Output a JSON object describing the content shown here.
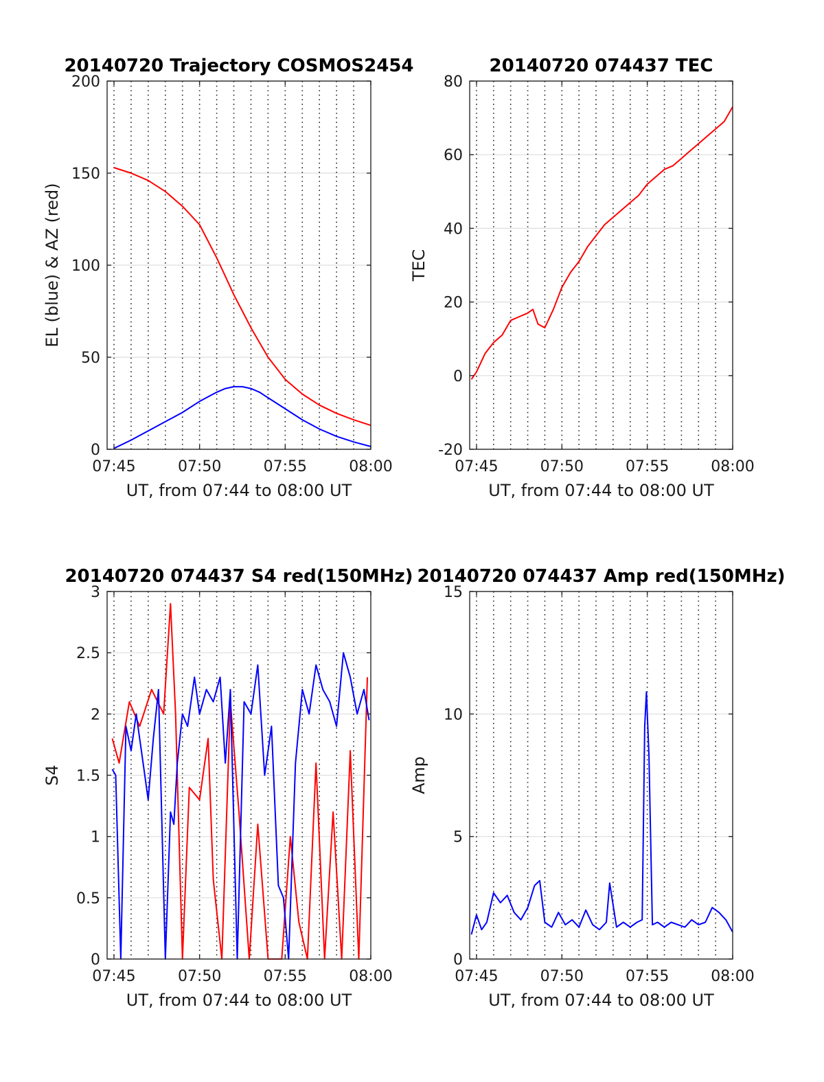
{
  "chart_data": [
    {
      "type": "line",
      "title": "20140720 Trajectory COSMOS2454",
      "xlabel": "UT, from 07:44 to 08:00 UT",
      "ylabel": "EL (blue) & AZ (red)",
      "x_unit": "minutes after 07:00 UT",
      "xlim": [
        44.6,
        60
      ],
      "ylim": [
        0,
        200
      ],
      "xticks": [
        45,
        50,
        55,
        60
      ],
      "xtick_labels": [
        "07:45",
        "07:50",
        "07:55",
        "08:00"
      ],
      "yticks": [
        0,
        50,
        100,
        150,
        200
      ],
      "ytick_labels": [
        "0",
        "50",
        "100",
        "150",
        "200"
      ],
      "vgrid_minutes": [
        45,
        46,
        47,
        48,
        49,
        50,
        51,
        52,
        53,
        54,
        55,
        56,
        57,
        58,
        59
      ],
      "hgrid": true,
      "series": [
        {
          "color": "#ff0000",
          "x": [
            45,
            46,
            47,
            48,
            49,
            50,
            51,
            51.5,
            52,
            52.5,
            53,
            53.5,
            54,
            55,
            56,
            57,
            58,
            59,
            60
          ],
          "y": [
            153,
            150,
            146,
            140,
            132,
            122,
            104,
            94,
            84,
            75,
            66,
            58,
            50,
            38,
            30,
            24,
            19.5,
            16,
            13
          ]
        },
        {
          "color": "#0000ff",
          "x": [
            45,
            46,
            47,
            48,
            49,
            50,
            51,
            51.5,
            52,
            52.5,
            53,
            53.5,
            54,
            55,
            56,
            57,
            58,
            59,
            60
          ],
          "y": [
            0.5,
            5,
            10,
            15,
            20,
            26,
            31,
            33,
            34,
            34,
            33,
            31,
            28,
            22,
            16,
            11,
            7,
            4,
            1.5
          ]
        }
      ]
    },
    {
      "type": "line",
      "title": "20140720 074437 TEC",
      "xlabel": "UT, from 07:44 to 08:00 UT",
      "ylabel": "TEC",
      "x_unit": "minutes after 07:00 UT",
      "xlim": [
        44.6,
        60
      ],
      "ylim": [
        -20,
        80
      ],
      "xticks": [
        45,
        50,
        55,
        60
      ],
      "xtick_labels": [
        "07:45",
        "07:50",
        "07:55",
        "08:00"
      ],
      "yticks": [
        -20,
        0,
        20,
        40,
        60,
        80
      ],
      "ytick_labels": [
        "-20",
        "0",
        "20",
        "40",
        "60",
        "80"
      ],
      "vgrid_minutes": [
        45,
        46,
        47,
        48,
        49,
        50,
        51,
        52,
        53,
        54,
        55,
        56,
        57,
        58,
        59
      ],
      "hgrid": true,
      "series": [
        {
          "color": "#ff0000",
          "x": [
            44.7,
            45,
            45.5,
            46,
            46.5,
            47,
            47.5,
            48,
            48.3,
            48.6,
            49,
            49.5,
            50,
            50.5,
            51,
            51.5,
            52,
            52.5,
            53,
            53.5,
            54,
            54.5,
            55,
            55.5,
            56,
            56.5,
            57,
            57.5,
            58,
            58.5,
            59,
            59.5,
            60
          ],
          "y": [
            -1,
            1,
            6,
            9,
            11,
            15,
            16,
            17,
            18,
            14,
            13,
            18,
            24,
            28,
            31,
            35,
            38,
            41,
            43,
            45,
            47,
            49,
            52,
            54,
            56,
            57,
            59,
            61,
            63,
            65,
            67,
            69,
            73
          ]
        }
      ]
    },
    {
      "type": "line",
      "title": "20140720 074437 S4 red(150MHz)",
      "xlabel": "UT, from 07:44 to 08:00 UT",
      "ylabel": "S4",
      "x_unit": "minutes after 07:00 UT",
      "xlim": [
        44.6,
        60
      ],
      "ylim": [
        0,
        3
      ],
      "xticks": [
        45,
        50,
        55,
        60
      ],
      "xtick_labels": [
        "07:45",
        "07:50",
        "07:55",
        "08:00"
      ],
      "yticks": [
        0,
        0.5,
        1,
        1.5,
        2,
        2.5,
        3
      ],
      "ytick_labels": [
        "0",
        "0.5",
        "1",
        "1.5",
        "2",
        "2.5",
        "3"
      ],
      "vgrid_minutes": [
        45,
        46,
        47,
        48,
        49,
        50,
        51,
        52,
        53,
        54,
        55,
        56,
        57,
        58,
        59
      ],
      "hgrid": true,
      "series": [
        {
          "color": "#ff0000",
          "x": [
            44.9,
            45.3,
            45.9,
            46.5,
            47.2,
            47.9,
            48.3,
            48.6,
            49.0,
            49.4,
            50.0,
            50.5,
            50.8,
            51.3,
            51.8,
            52.3,
            52.9,
            53.4,
            54.0,
            54.4,
            54.8,
            55.3,
            55.8,
            56.3,
            56.8,
            57.3,
            57.8,
            58.3,
            58.8,
            59.3,
            59.8
          ],
          "y": [
            1.8,
            1.6,
            2.1,
            1.9,
            2.2,
            2.0,
            2.9,
            2.0,
            0.0,
            1.4,
            1.3,
            1.8,
            0.65,
            0.0,
            2.1,
            1.2,
            0.0,
            1.1,
            0.0,
            0.0,
            0.0,
            1.0,
            0.3,
            0.0,
            1.6,
            0.0,
            1.2,
            0.0,
            1.7,
            0.0,
            2.3
          ]
        },
        {
          "color": "#0000ff",
          "x": [
            44.9,
            45.1,
            45.4,
            45.7,
            46.0,
            46.3,
            46.7,
            47.0,
            47.3,
            47.6,
            48.0,
            48.3,
            48.5,
            48.7,
            49.0,
            49.3,
            49.7,
            50.0,
            50.4,
            50.8,
            51.2,
            51.5,
            51.8,
            52.2,
            52.6,
            53.0,
            53.4,
            53.8,
            54.2,
            54.6,
            54.9,
            55.2,
            55.6,
            56.0,
            56.4,
            56.8,
            57.2,
            57.6,
            58.0,
            58.4,
            58.8,
            59.2,
            59.6,
            59.9
          ],
          "y": [
            1.55,
            1.5,
            0.0,
            1.9,
            1.7,
            2.0,
            1.6,
            1.3,
            1.8,
            2.2,
            0.0,
            1.2,
            1.1,
            1.6,
            2.0,
            1.9,
            2.3,
            2.0,
            2.2,
            2.1,
            2.3,
            1.6,
            2.2,
            0.0,
            2.1,
            2.0,
            2.4,
            1.5,
            1.9,
            0.6,
            0.5,
            0.0,
            1.6,
            2.2,
            2.0,
            2.4,
            2.2,
            2.1,
            1.9,
            2.5,
            2.3,
            2.0,
            2.2,
            1.95
          ]
        }
      ]
    },
    {
      "type": "line",
      "title": "20140720 074437 Amp red(150MHz)",
      "xlabel": "UT, from 07:44 to 08:00 UT",
      "ylabel": "Amp",
      "x_unit": "minutes after 07:00 UT",
      "xlim": [
        44.6,
        60
      ],
      "ylim": [
        0,
        15
      ],
      "xticks": [
        45,
        50,
        55,
        60
      ],
      "xtick_labels": [
        "07:45",
        "07:50",
        "07:55",
        "08:00"
      ],
      "yticks": [
        0,
        5,
        10,
        15
      ],
      "ytick_labels": [
        "0",
        "5",
        "10",
        "15"
      ],
      "vgrid_minutes": [
        45,
        46,
        47,
        48,
        49,
        50,
        51,
        52,
        53,
        54,
        55,
        56,
        57,
        58,
        59
      ],
      "hgrid": true,
      "series": [
        {
          "color": "#0000ff",
          "x": [
            44.7,
            45.0,
            45.3,
            45.6,
            46.0,
            46.4,
            46.8,
            47.2,
            47.6,
            48.0,
            48.4,
            48.7,
            49.0,
            49.4,
            49.8,
            50.2,
            50.6,
            51.0,
            51.4,
            51.8,
            52.2,
            52.6,
            52.8,
            53.2,
            53.6,
            54.0,
            54.4,
            54.7,
            54.85,
            54.95,
            55.1,
            55.3,
            55.6,
            56.0,
            56.4,
            56.8,
            57.2,
            57.6,
            58.0,
            58.4,
            58.8,
            59.2,
            59.6,
            60.0
          ],
          "y": [
            1.0,
            1.8,
            1.2,
            1.5,
            2.7,
            2.3,
            2.6,
            1.9,
            1.6,
            2.1,
            3.0,
            3.2,
            1.5,
            1.3,
            1.9,
            1.4,
            1.6,
            1.3,
            2.0,
            1.4,
            1.2,
            1.5,
            3.1,
            1.3,
            1.5,
            1.3,
            1.5,
            1.6,
            9.5,
            10.9,
            8.3,
            1.4,
            1.5,
            1.3,
            1.5,
            1.4,
            1.3,
            1.6,
            1.4,
            1.5,
            2.1,
            1.9,
            1.6,
            1.1
          ]
        }
      ]
    }
  ]
}
